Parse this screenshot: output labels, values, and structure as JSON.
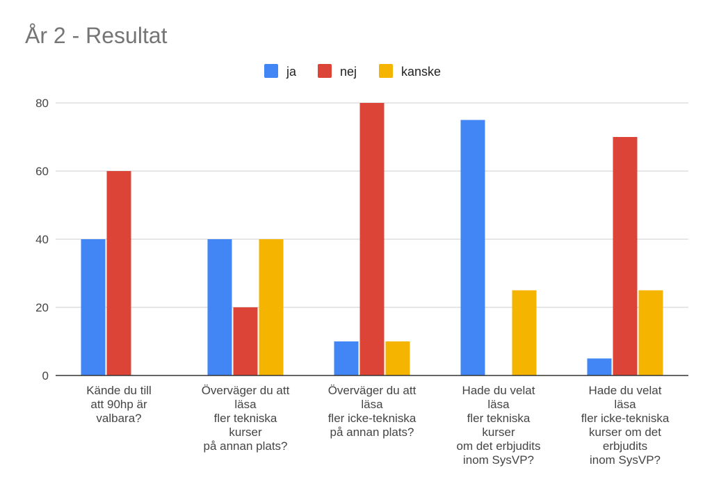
{
  "chart_data": {
    "type": "bar",
    "title": "År 2 - Resultat",
    "categories": [
      [
        "Kände du till",
        "att 90hp är",
        "valbara?"
      ],
      [
        "Överväger du att",
        "läsa",
        "fler tekniska",
        "kurser",
        "på annan plats?"
      ],
      [
        "Överväger du att",
        "läsa",
        "fler icke-tekniska",
        "på annan plats?"
      ],
      [
        "Hade du velat",
        "läsa",
        "fler tekniska",
        "kurser",
        "om det erbjudits",
        "inom SysVP?"
      ],
      [
        "Hade du velat",
        "läsa",
        "fler icke-tekniska",
        "kurser om det",
        "erbjudits",
        "inom SysVP?"
      ]
    ],
    "series": [
      {
        "name": "ja",
        "color": "#4285f4",
        "values": [
          40,
          40,
          10,
          75,
          5
        ]
      },
      {
        "name": "nej",
        "color": "#db4437",
        "values": [
          60,
          20,
          80,
          0,
          70
        ]
      },
      {
        "name": "kanske",
        "color": "#f4b400",
        "values": [
          0,
          40,
          10,
          25,
          25
        ]
      }
    ],
    "ylim": [
      0,
      80
    ],
    "yticks": [
      0,
      20,
      40,
      60,
      80
    ],
    "grid": true,
    "legend": "top-center",
    "xlabel": "",
    "ylabel": ""
  }
}
